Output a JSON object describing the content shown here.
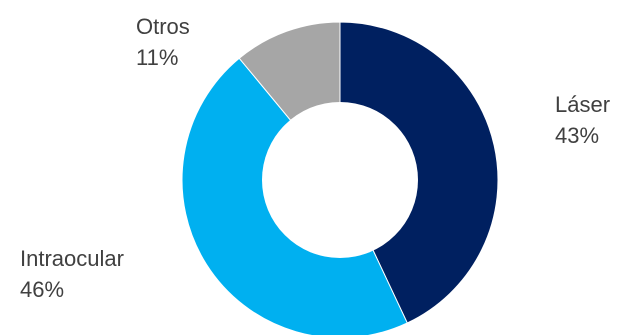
{
  "chart_data": {
    "type": "pie",
    "variant": "donut",
    "title": "",
    "slices": [
      {
        "label": "Láser",
        "value": 43,
        "value_label": "43%",
        "color": "#002060"
      },
      {
        "label": "Intraocular",
        "value": 46,
        "value_label": "46%",
        "color": "#00B0F0"
      },
      {
        "label": "Otros",
        "value": 11,
        "value_label": "11%",
        "color": "#A6A6A6"
      }
    ],
    "legend": "none",
    "data_labels": "outside"
  }
}
